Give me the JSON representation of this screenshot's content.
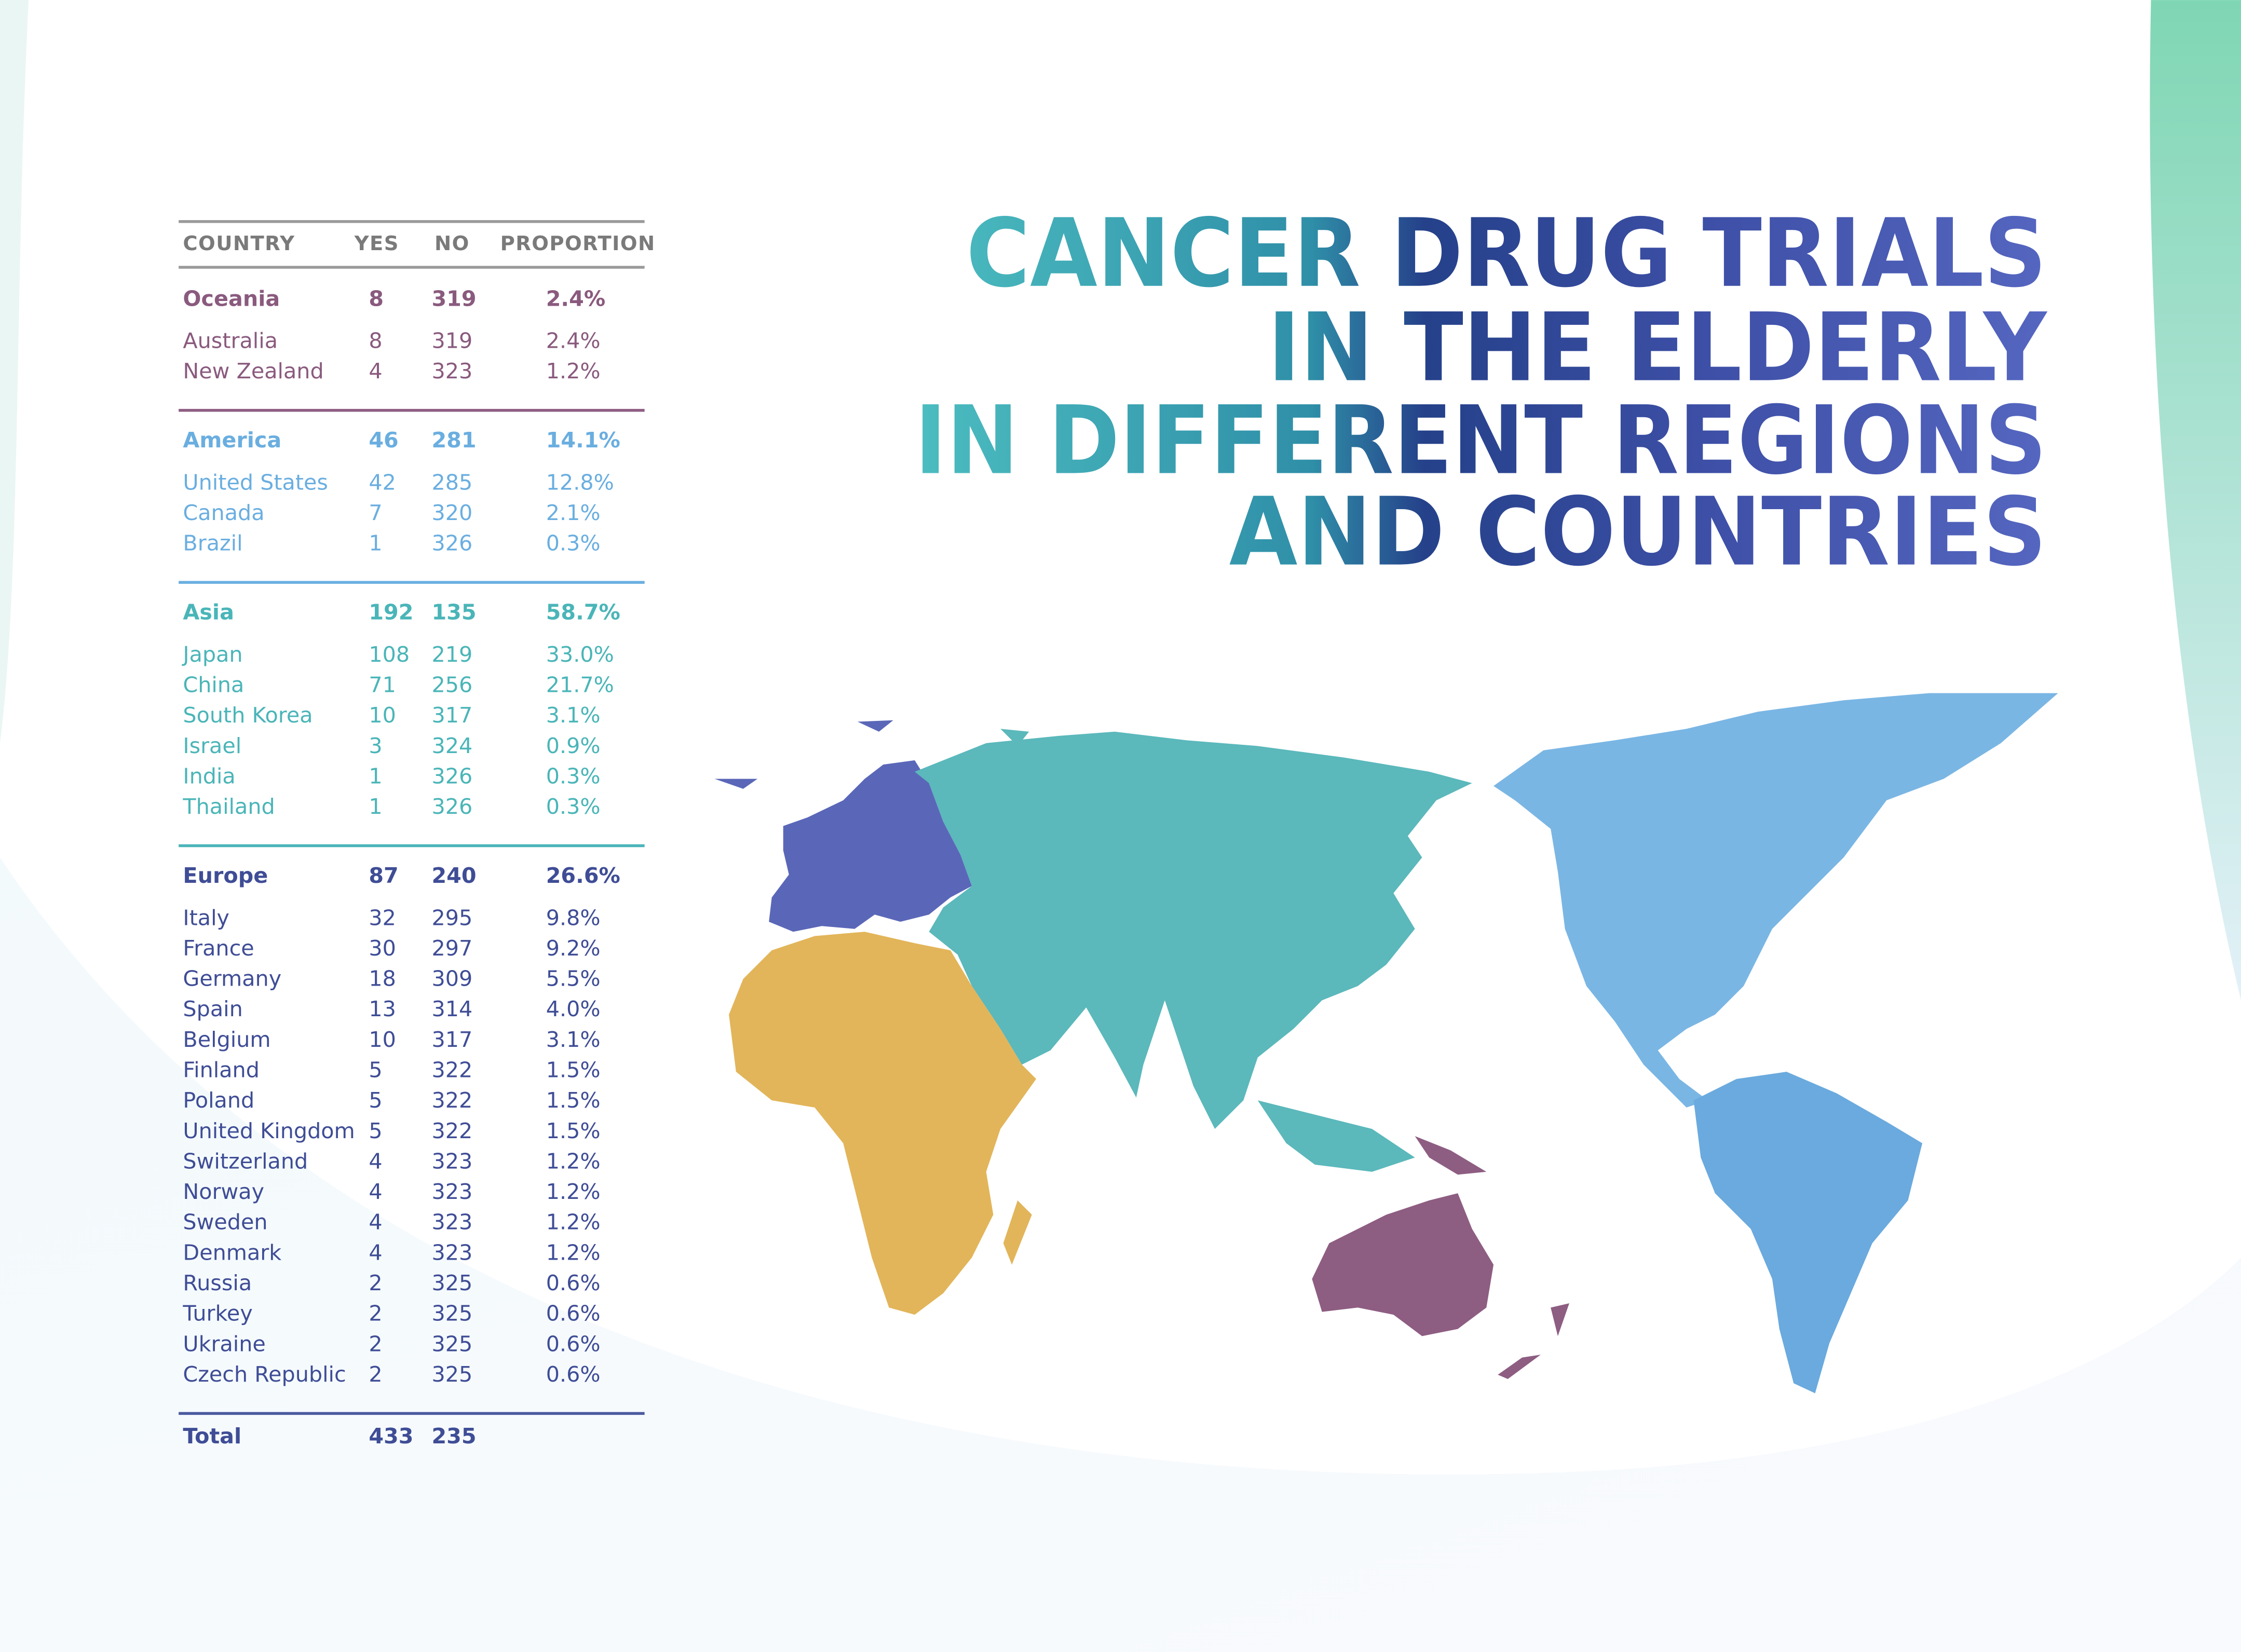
{
  "title": {
    "lines": [
      "CANCER DRUG TRIALS",
      "IN THE ELDERLY",
      "IN DIFFERENT REGIONS",
      "AND COUNTRIES"
    ]
  },
  "table": {
    "header": [
      "COUNTRY",
      "YES",
      "NO",
      "PROPORTION"
    ],
    "groups": [
      {
        "summary": [
          "Oceania",
          8,
          319,
          "2.4%"
        ],
        "rows": [
          [
            "Australia",
            8,
            319,
            "2.4%"
          ],
          [
            "New Zealand",
            4,
            323,
            "1.2%"
          ]
        ]
      },
      {
        "summary": [
          "America",
          46,
          281,
          "14.1%"
        ],
        "rows": [
          [
            "United States",
            42,
            285,
            "12.8%"
          ],
          [
            "Canada",
            7,
            320,
            "2.1%"
          ],
          [
            "Brazil",
            1,
            326,
            "0.3%"
          ]
        ]
      },
      {
        "summary": [
          "Asia",
          192,
          135,
          "58.7%"
        ],
        "rows": [
          [
            "Japan",
            108,
            219,
            "33.0%"
          ],
          [
            "China",
            71,
            256,
            "21.7%"
          ],
          [
            "South Korea",
            10,
            317,
            "3.1%"
          ],
          [
            "Israel",
            3,
            324,
            "0.9%"
          ],
          [
            "India",
            1,
            326,
            "0.3%"
          ],
          [
            "Thailand",
            1,
            326,
            "0.3%"
          ]
        ]
      },
      {
        "summary": [
          "Europe",
          87,
          240,
          "26.6%"
        ],
        "rows": [
          [
            "Italy",
            32,
            295,
            "9.8%"
          ],
          [
            "France",
            30,
            297,
            "9.2%"
          ],
          [
            "Germany",
            18,
            309,
            "5.5%"
          ],
          [
            "Spain",
            13,
            314,
            "4.0%"
          ],
          [
            "Belgium",
            10,
            317,
            "3.1%"
          ],
          [
            "Finland",
            5,
            322,
            "1.5%"
          ],
          [
            "Poland",
            5,
            322,
            "1.5%"
          ],
          [
            "United Kingdom",
            5,
            322,
            "1.5%"
          ],
          [
            "Switzerland",
            4,
            323,
            "1.2%"
          ],
          [
            "Norway",
            4,
            323,
            "1.2%"
          ],
          [
            "Sweden",
            4,
            323,
            "1.2%"
          ],
          [
            "Denmark",
            4,
            323,
            "1.2%"
          ],
          [
            "Russia",
            2,
            325,
            "0.6%"
          ],
          [
            "Turkey",
            2,
            325,
            "0.6%"
          ],
          [
            "Ukraine",
            2,
            325,
            "0.6%"
          ],
          [
            "Czech Republic",
            2,
            325,
            "0.6%"
          ]
        ]
      }
    ],
    "total": [
      "Total",
      433,
      235
    ]
  }
}
